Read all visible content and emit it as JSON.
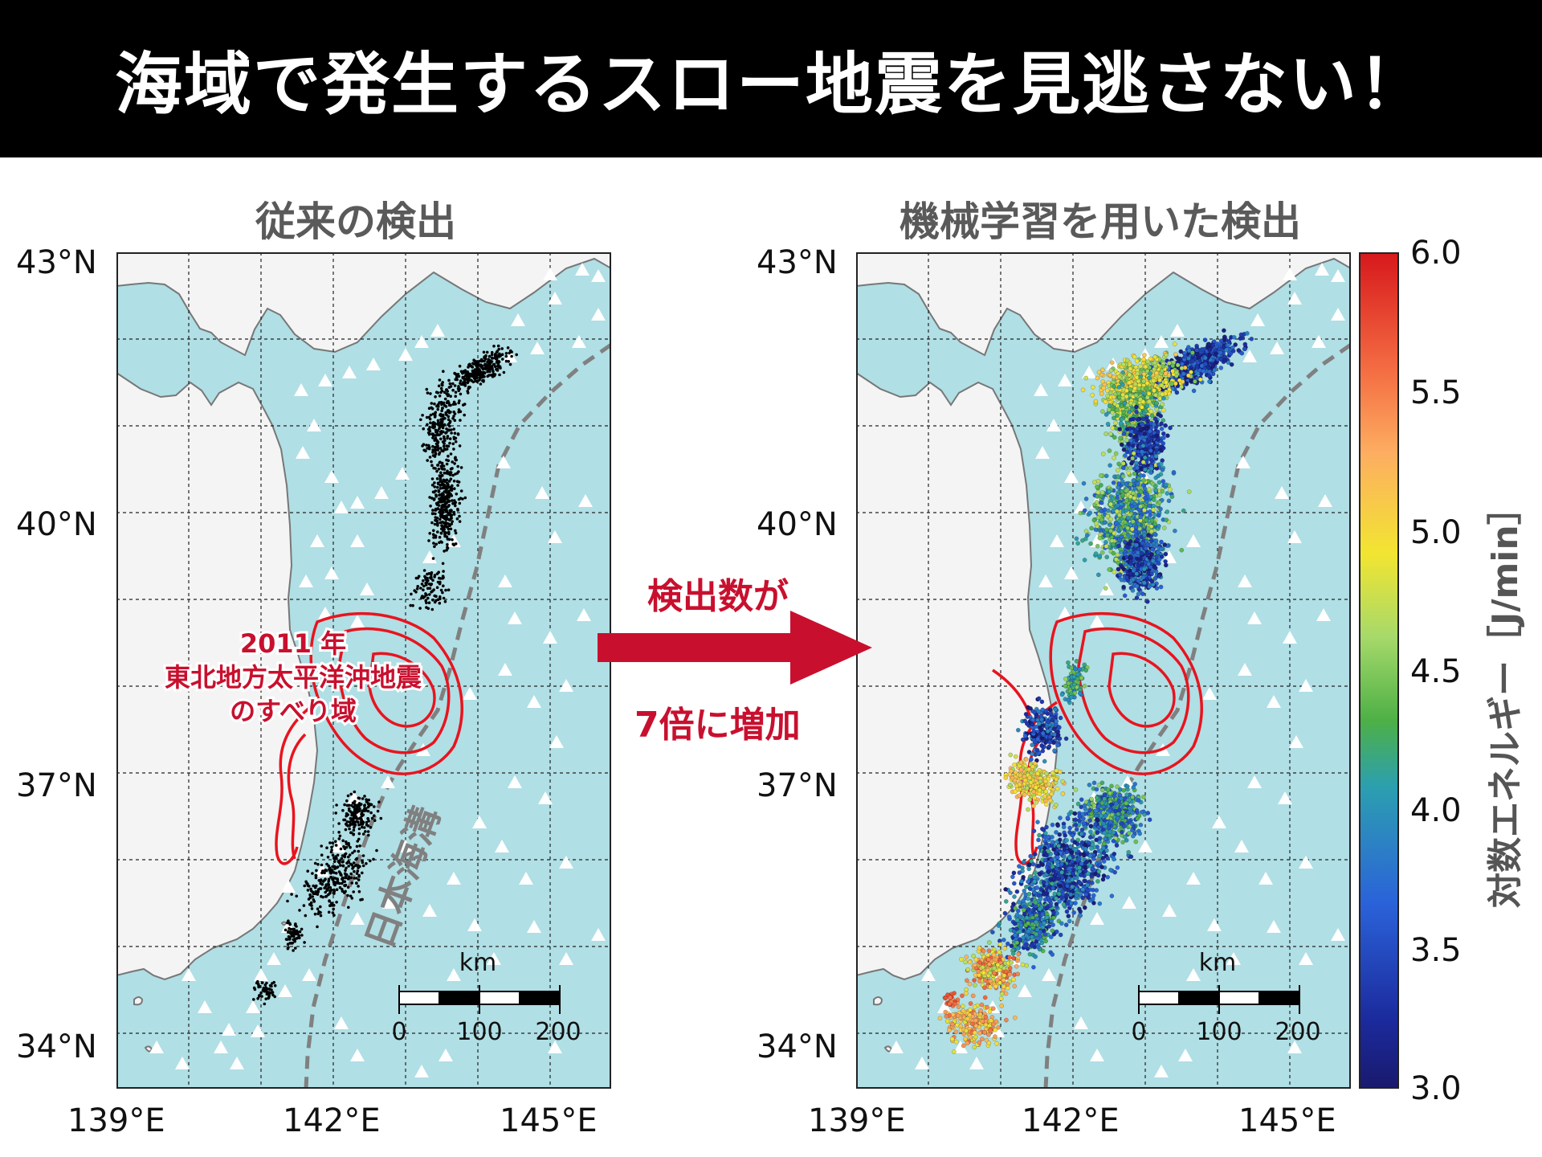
{
  "title": "海域で発生するスロー地震を見逃さない！",
  "left_panel": {
    "title": "従来の検出",
    "annotation_lines": [
      "2011 年",
      "東北地方太平洋沖地震",
      "のすべり域"
    ],
    "trench_label": "日本海溝"
  },
  "right_panel": {
    "title": "機械学習を用いた検出"
  },
  "arrow": {
    "line1": "検出数が",
    "line2": "7倍に増加",
    "color": "#c8102e"
  },
  "axes": {
    "lat_ticks": [
      "43°N",
      "40°N",
      "37°N",
      "34°N"
    ],
    "lon_ticks": [
      "139°E",
      "142°E",
      "145°E"
    ]
  },
  "scalebar": {
    "unit": "km",
    "ticks": [
      "0",
      "100",
      "200"
    ]
  },
  "colorbar": {
    "label": "対数エネルギー［J/min］",
    "ticks": [
      "6.0",
      "5.5",
      "5.0",
      "4.5",
      "4.0",
      "3.5",
      "3.0"
    ],
    "min": 3.0,
    "max": 6.0
  },
  "colors": {
    "ocean": "#b0dfe5",
    "land": "#f4f4f4",
    "coast": "#777777",
    "slip_contour": "#e8141e",
    "trench": "#808080",
    "station": "#ffffff",
    "header_bg": "#000000"
  }
}
